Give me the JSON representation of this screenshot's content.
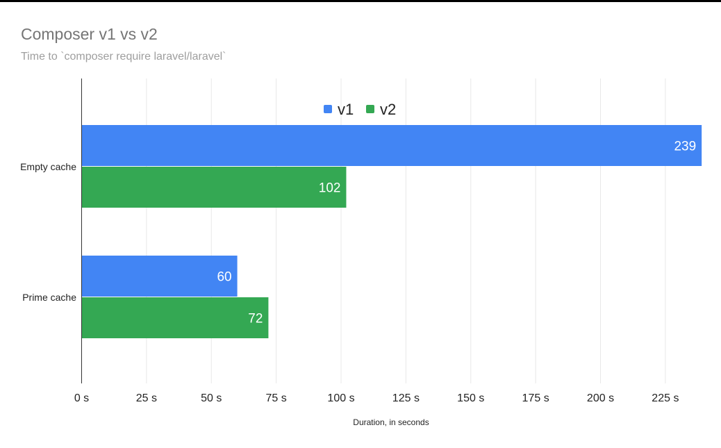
{
  "chart_data": {
    "type": "bar",
    "orientation": "horizontal",
    "title": "Composer v1 vs v2",
    "subtitle": "Time to `composer require laravel/laravel`",
    "xlabel": "Duration, in seconds",
    "ylabel": "",
    "categories": [
      "Empty cache",
      "Prime cache"
    ],
    "series": [
      {
        "name": "v1",
        "values": [
          239,
          60
        ],
        "color": "#4285f4"
      },
      {
        "name": "v2",
        "values": [
          102,
          72
        ],
        "color": "#34a853"
      }
    ],
    "xlim": [
      0,
      239
    ],
    "xticks": [
      0,
      25,
      50,
      75,
      100,
      125,
      150,
      175,
      200,
      225
    ],
    "xtick_labels": [
      "0 s",
      "25 s",
      "50 s",
      "75 s",
      "100 s",
      "125 s",
      "150 s",
      "175 s",
      "200 s",
      "225 s"
    ],
    "data_labels": true,
    "grid": "vertical",
    "legend": "top-center"
  }
}
